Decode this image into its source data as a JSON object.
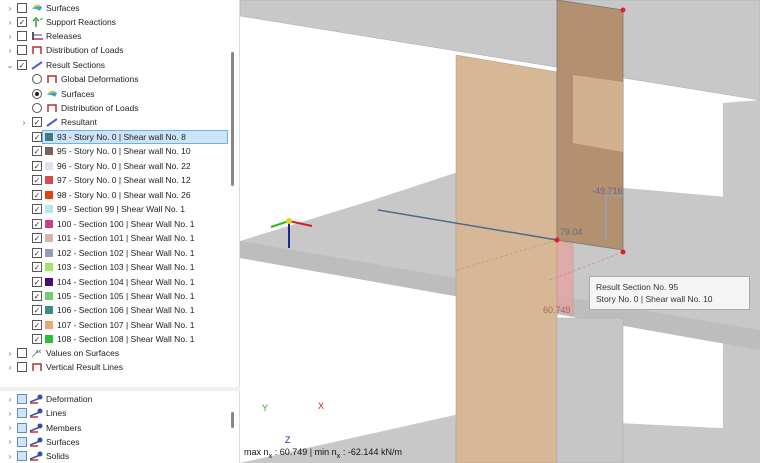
{
  "tree": [
    {
      "label": "Surfaces",
      "checked": false,
      "icon": "surfaces-icon",
      "level": 0,
      "chevron": ">"
    },
    {
      "label": "Support Reactions",
      "checked": true,
      "icon": "support-reactions-icon",
      "level": 0,
      "chevron": ">"
    },
    {
      "label": "Releases",
      "checked": false,
      "icon": "releases-icon",
      "level": 0,
      "chevron": ">"
    },
    {
      "label": "Distribution of Loads",
      "checked": false,
      "icon": "distribution-loads-icon",
      "level": 0,
      "chevron": ">"
    },
    {
      "label": "Result Sections",
      "checked": true,
      "icon": "result-sections-icon",
      "level": 0,
      "chevron": "v"
    },
    {
      "label": "Global Deformations",
      "radio": false,
      "icon": "distribution-loads-icon",
      "level": 1
    },
    {
      "label": "Surfaces",
      "radio": true,
      "icon": "surfaces-icon",
      "level": 1
    },
    {
      "label": "Distribution of Loads",
      "radio": false,
      "icon": "distribution-loads-icon",
      "level": 1
    },
    {
      "label": "Resultant",
      "checked": true,
      "icon": "result-sections-icon",
      "level": 1,
      "chevron": ">"
    }
  ],
  "sections": [
    {
      "label": "93 - Story No. 0 | Shear wall No. 8",
      "color": "#3f7a7c",
      "selected": true
    },
    {
      "label": "95 - Story No. 0 | Shear wall No. 10",
      "color": "#7a625a"
    },
    {
      "label": "96 - Story No. 0 | Shear wall No. 22",
      "color": "#e4dff0"
    },
    {
      "label": "97 - Story No. 0 | Shear wall No. 12",
      "color": "#d9494f"
    },
    {
      "label": "98 - Story No. 0 | Shear wall No. 26",
      "color": "#e6420c"
    },
    {
      "label": "99 - Section 99 | Shear Wall No. 1",
      "color": "#b6e6e8"
    },
    {
      "label": "100 - Section 100 | Shear Wall No. 1",
      "color": "#cc3d8e"
    },
    {
      "label": "101 - Section 101 | Shear Wall No. 1",
      "color": "#d5b3b3"
    },
    {
      "label": "102 - Section 102 | Shear Wall No. 1",
      "color": "#9c98b8"
    },
    {
      "label": "103 - Section 103 | Shear Wall No. 1",
      "color": "#a2e660"
    },
    {
      "label": "104 - Section 104 | Shear Wall No. 1",
      "color": "#4a0a7a"
    },
    {
      "label": "105 - Section 105 | Shear Wall No. 1",
      "color": "#74cc70"
    },
    {
      "label": "106 - Section 106 | Shear Wall No. 1",
      "color": "#3a8c8a"
    },
    {
      "label": "107 - Section 107 | Shear Wall No. 1",
      "color": "#eaa870"
    },
    {
      "label": "108 - Section 108 | Shear Wall No. 1",
      "color": "#2cc030"
    }
  ],
  "tree_after": [
    {
      "label": "Values on Surfaces",
      "checked": false,
      "icon": "values-surfaces-icon"
    },
    {
      "label": "Vertical Result Lines",
      "checked": false,
      "icon": "distribution-loads-icon"
    }
  ],
  "bottom_tree": [
    {
      "label": "Deformation"
    },
    {
      "label": "Lines"
    },
    {
      "label": "Members"
    },
    {
      "label": "Surfaces"
    },
    {
      "label": "Solids"
    }
  ],
  "viewport": {
    "labels": {
      "top": "-49.716",
      "mid": "79.04",
      "bottom": "60.749"
    },
    "tooltip": {
      "line1": "Result Section No. 95",
      "line2": "Story No. 0 | Shear wall No. 10"
    },
    "axes": {
      "x": "X",
      "y": "Y",
      "z": "Z"
    },
    "status": {
      "max_label": "max n",
      "sub": "x",
      "max_value": ": 60.749 | min n",
      "min_value": ": -62.144 kN/m"
    }
  }
}
